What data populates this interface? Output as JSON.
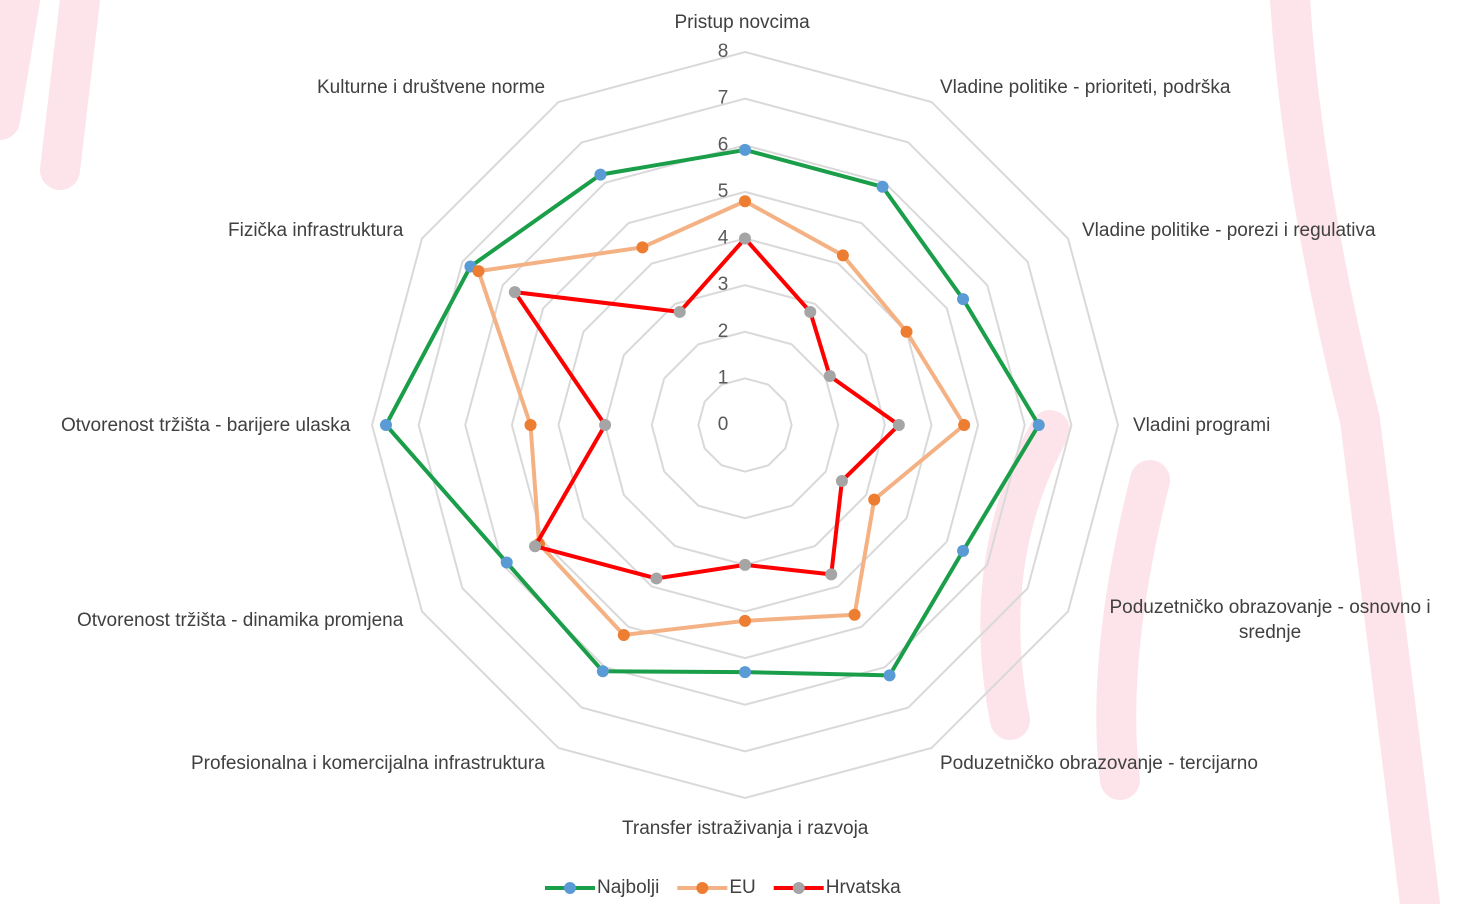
{
  "chart_data": {
    "type": "radar",
    "categories": [
      "Pristup novcima",
      "Vladine politike - prioriteti, podrška",
      "Vladine politike - porezi i regulativa",
      "Vladini programi",
      "Poduzetničko obrazovanje - osnovno i srednje",
      "Poduzetničko obrazovanje - tercijarno",
      "Transfer istraživanja i razvoja",
      "Profesionalna i komercijalna  infrastruktura",
      "Otvorenost tržišta - dinamika promjena",
      "Otvorenost tržišta - barijere ulaska",
      "Fizička infrastruktura",
      "Kulturne i društvene norme"
    ],
    "series": [
      {
        "name": "Najbolji",
        "color": "#1a9e4a",
        "marker_color": "#5b9bd5",
        "values": [
          5.9,
          5.9,
          5.4,
          6.3,
          5.4,
          6.2,
          5.3,
          6.1,
          5.9,
          7.7,
          6.8,
          6.2
        ]
      },
      {
        "name": "EU",
        "color": "#f4b183",
        "marker_color": "#ed7d31",
        "values": [
          4.8,
          4.2,
          4.0,
          4.7,
          3.2,
          4.7,
          4.2,
          5.2,
          5.1,
          4.6,
          6.6,
          4.4
        ]
      },
      {
        "name": "Hrvatska",
        "color": "#ff0000",
        "marker_color": "#a5a5a5",
        "values": [
          4.0,
          2.8,
          2.1,
          3.3,
          2.4,
          3.7,
          3.0,
          3.8,
          5.2,
          3.0,
          5.7,
          2.8
        ]
      }
    ],
    "ylim": [
      0,
      8
    ],
    "yticks": [
      0,
      1,
      2,
      3,
      4,
      5,
      6,
      7,
      8
    ],
    "grid": true,
    "legend": "bottom"
  }
}
